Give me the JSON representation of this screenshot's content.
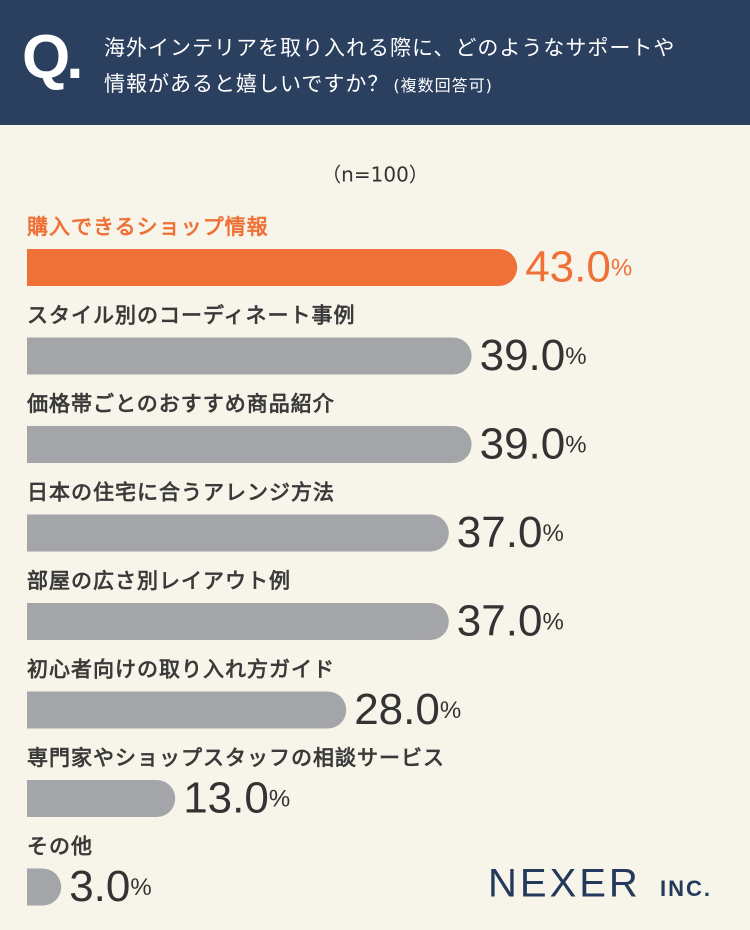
{
  "chart_data": {
    "type": "bar",
    "orientation": "horizontal",
    "question_label": "Q.",
    "title_lines": [
      "海外インテリアを取り入れる際に、どのようなサポートや",
      "情報があると嬉しいですか？"
    ],
    "title_note": "(複数回答可)",
    "subtitle": "（n=100）",
    "categories": [
      "購入できるショップ情報",
      "スタイル別のコーディネート事例",
      "価格帯ごとのおすすめ商品紹介",
      "日本の住宅に合うアレンジ方法",
      "部屋の広さ別レイアウト例",
      "初心者向けの取り入れ方ガイド",
      "専門家やショップスタッフの相談サービス",
      "その他"
    ],
    "values": [
      43,
      39,
      39,
      37,
      37,
      28,
      13,
      3
    ],
    "value_labels": [
      "43.0%",
      "39.0%",
      "39.0%",
      "37.0%",
      "37.0%",
      "28.0%",
      "13.0%",
      "3.0%"
    ],
    "colors": [
      "#ef7138",
      "#a4a5a9",
      "#a4a5a9",
      "#a4a5a9",
      "#a4a5a9",
      "#a4a5a9",
      "#a4a5a9",
      "#a4a5a9"
    ],
    "logo": "NEXER",
    "logo_suffix": "INC."
  }
}
